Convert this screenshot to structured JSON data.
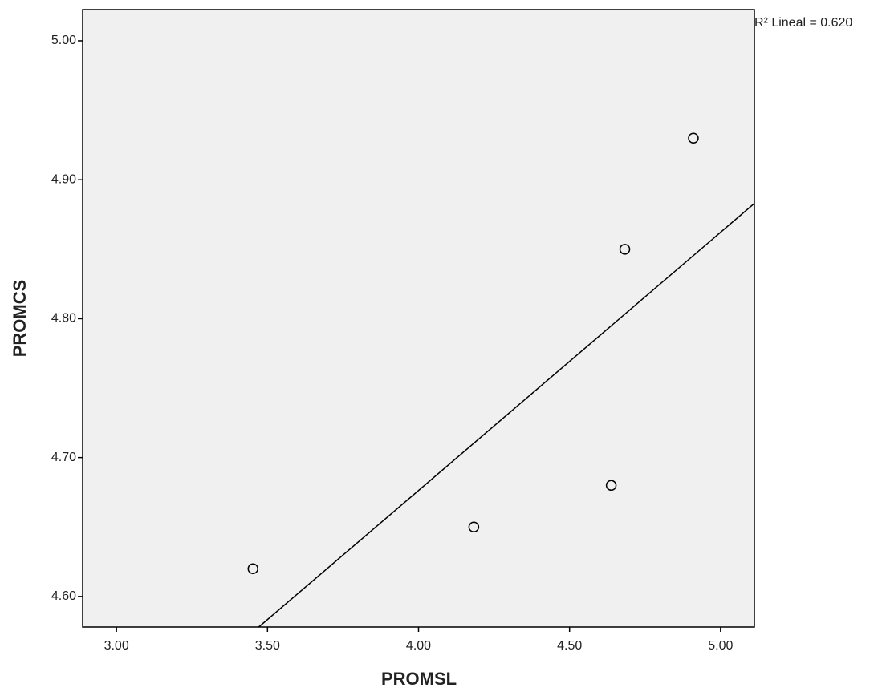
{
  "chart_data": {
    "type": "scatter",
    "x_label": "PROMSL",
    "y_label": "PROMCS",
    "annotation": "R² Lineal = 0.620",
    "x": [
      3.452,
      4.183,
      4.638,
      4.683,
      4.91
    ],
    "values": [
      4.62,
      4.65,
      4.68,
      4.85,
      4.93
    ],
    "color": "#000000",
    "fit_line": {
      "x": [
        3.471,
        5.112
      ],
      "y": [
        4.578,
        4.883
      ]
    },
    "xlim": [
      2.888,
      5.112
    ],
    "ylim": [
      4.578,
      5.0225
    ],
    "xticks": [
      {
        "value": 3,
        "label": "3.00"
      },
      {
        "value": 3.5,
        "label": "3.50"
      },
      {
        "value": 4,
        "label": "4.00"
      },
      {
        "value": 4.5,
        "label": "4.50"
      },
      {
        "value": 5,
        "label": "5.00"
      }
    ],
    "yticks": [
      {
        "value": 4.6,
        "label": "4.60"
      },
      {
        "value": 4.7,
        "label": "4.70"
      },
      {
        "value": 4.8,
        "label": "4.80"
      },
      {
        "value": 4.9,
        "label": "4.90"
      },
      {
        "value": 5,
        "label": "5.00"
      }
    ],
    "grid": false
  }
}
